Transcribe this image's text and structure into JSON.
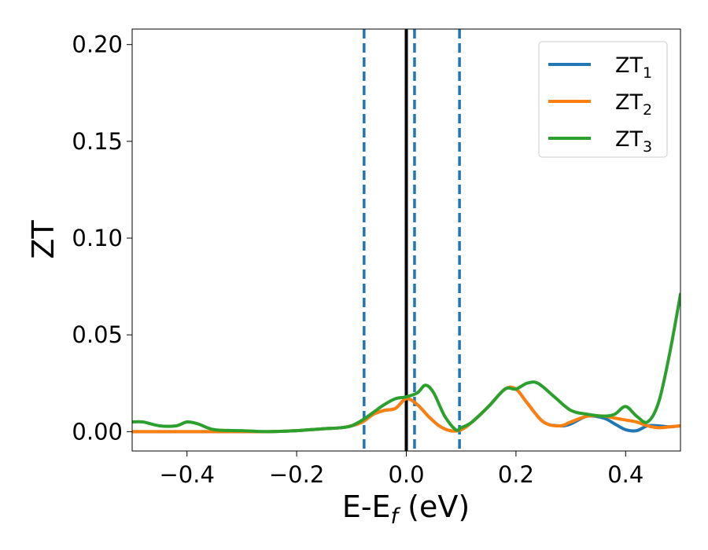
{
  "chart_data": {
    "type": "line",
    "xlabel": "E-E_f (eV)",
    "ylabel": "ZT",
    "xlim": [
      -0.5,
      0.5
    ],
    "ylim": [
      -0.01,
      0.208
    ],
    "x_ticks": [
      -0.4,
      -0.2,
      0.0,
      0.2,
      0.4
    ],
    "x_tick_labels": [
      "−0.4",
      "−0.2",
      "0.0",
      "0.2",
      "0.4"
    ],
    "y_ticks": [
      0.0,
      0.05,
      0.1,
      0.15,
      0.2
    ],
    "y_tick_labels": [
      "0.00",
      "0.05",
      "0.10",
      "0.15",
      "0.20"
    ],
    "legend_position": "top-right",
    "grid": false,
    "vertical_lines": [
      {
        "x": 0.0,
        "style": "solid",
        "color": "#000000"
      },
      {
        "x": -0.077,
        "style": "dashed",
        "color": "#1f77b4"
      },
      {
        "x": 0.015,
        "style": "dashed",
        "color": "#1f77b4"
      },
      {
        "x": 0.097,
        "style": "dashed",
        "color": "#1f77b4"
      }
    ],
    "series": [
      {
        "name": "ZT1",
        "label_main": "ZT",
        "label_sub": "1",
        "color": "#1f77b4",
        "x": [
          -0.5,
          -0.45,
          -0.4,
          -0.35,
          -0.3,
          -0.25,
          -0.2,
          -0.15,
          -0.12,
          -0.1,
          -0.08,
          -0.06,
          -0.04,
          -0.02,
          0.0,
          0.02,
          0.04,
          0.06,
          0.08,
          0.1,
          0.12,
          0.15,
          0.18,
          0.2,
          0.22,
          0.25,
          0.28,
          0.3,
          0.33,
          0.36,
          0.38,
          0.4,
          0.42,
          0.44,
          0.46,
          0.48,
          0.5
        ],
        "y": [
          0.0,
          0.0,
          0.0,
          0.0,
          0.0,
          0.0,
          0.0005,
          0.0015,
          0.002,
          0.003,
          0.005,
          0.009,
          0.011,
          0.012,
          0.017,
          0.014,
          0.008,
          0.003,
          0.0005,
          0.001,
          0.005,
          0.013,
          0.022,
          0.022,
          0.015,
          0.005,
          0.003,
          0.004,
          0.008,
          0.007,
          0.004,
          0.001,
          0.0005,
          0.003,
          0.003,
          0.0025,
          0.003
        ]
      },
      {
        "name": "ZT2",
        "label_main": "ZT",
        "label_sub": "2",
        "color": "#ff7f0e",
        "x": [
          -0.5,
          -0.45,
          -0.4,
          -0.35,
          -0.3,
          -0.25,
          -0.2,
          -0.15,
          -0.12,
          -0.1,
          -0.08,
          -0.06,
          -0.04,
          -0.02,
          0.0,
          0.02,
          0.04,
          0.06,
          0.08,
          0.1,
          0.12,
          0.15,
          0.18,
          0.2,
          0.22,
          0.25,
          0.28,
          0.3,
          0.33,
          0.36,
          0.38,
          0.4,
          0.42,
          0.44,
          0.46,
          0.48,
          0.5
        ],
        "y": [
          0.0,
          0.0,
          0.0,
          0.0,
          0.0,
          0.0,
          0.0005,
          0.0015,
          0.002,
          0.003,
          0.005,
          0.009,
          0.011,
          0.012,
          0.017,
          0.014,
          0.008,
          0.003,
          0.0005,
          0.001,
          0.005,
          0.013,
          0.022,
          0.022,
          0.015,
          0.005,
          0.003,
          0.005,
          0.008,
          0.008,
          0.007,
          0.006,
          0.005,
          0.003,
          0.002,
          0.0025,
          0.003
        ]
      },
      {
        "name": "ZT3",
        "label_main": "ZT",
        "label_sub": "3",
        "color": "#2ca02c",
        "x": [
          -0.5,
          -0.48,
          -0.45,
          -0.42,
          -0.4,
          -0.38,
          -0.35,
          -0.3,
          -0.25,
          -0.2,
          -0.15,
          -0.12,
          -0.1,
          -0.08,
          -0.06,
          -0.04,
          -0.02,
          0.0,
          0.02,
          0.035,
          0.05,
          0.07,
          0.09,
          0.1,
          0.12,
          0.15,
          0.18,
          0.2,
          0.22,
          0.24,
          0.27,
          0.3,
          0.33,
          0.36,
          0.38,
          0.4,
          0.42,
          0.44,
          0.46,
          0.48,
          0.5
        ],
        "y": [
          0.005,
          0.005,
          0.003,
          0.003,
          0.005,
          0.004,
          0.001,
          0.0005,
          0.0,
          0.0005,
          0.0015,
          0.002,
          0.003,
          0.006,
          0.01,
          0.014,
          0.017,
          0.018,
          0.02,
          0.024,
          0.02,
          0.008,
          0.001,
          0.002,
          0.005,
          0.013,
          0.022,
          0.022,
          0.025,
          0.025,
          0.018,
          0.011,
          0.009,
          0.008,
          0.009,
          0.013,
          0.008,
          0.005,
          0.015,
          0.04,
          0.071
        ]
      }
    ]
  }
}
